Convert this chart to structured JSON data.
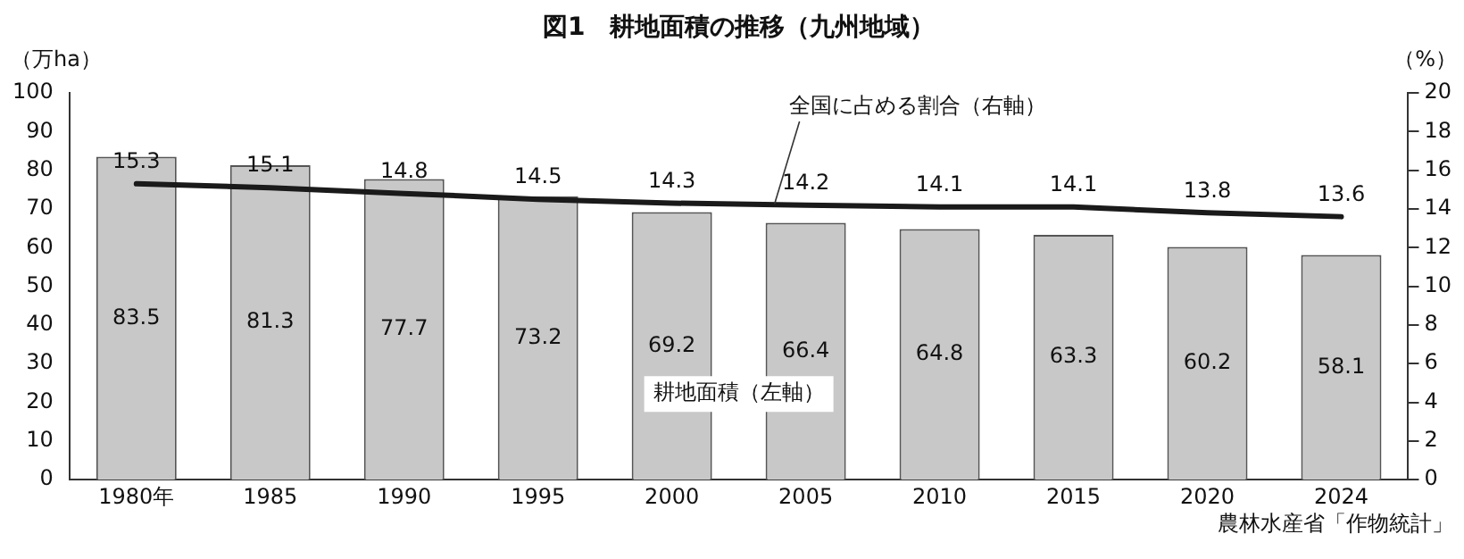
{
  "chart_data": {
    "type": "bar",
    "title": "図1　耕地面積の推移（九州地域）",
    "categories": [
      "1980年",
      "1985",
      "1990",
      "1995",
      "2000",
      "2005",
      "2010",
      "2015",
      "2020",
      "2024"
    ],
    "series": [
      {
        "name": "耕地面積（左軸）",
        "color": "#c8c8c8",
        "values": [
          83.5,
          81.3,
          77.7,
          73.2,
          69.2,
          66.4,
          64.8,
          63.3,
          60.2,
          58.1
        ]
      },
      {
        "name": "全国に占める割合（右軸）",
        "type": "line",
        "axis": "y2",
        "color": "#1a1a1a",
        "values": [
          15.3,
          15.1,
          14.8,
          14.5,
          14.3,
          14.2,
          14.1,
          14.1,
          13.8,
          13.6
        ]
      }
    ],
    "ylabel": "（万ha）",
    "y2label": "（%）",
    "ylim": [
      0,
      100
    ],
    "yticks": [
      0,
      10,
      20,
      30,
      40,
      50,
      60,
      70,
      80,
      90,
      100
    ],
    "y2lim": [
      0,
      20
    ],
    "y2ticks": [
      0,
      2,
      4,
      6,
      8,
      10,
      12,
      14,
      16,
      18,
      20
    ],
    "data_labels": true,
    "grid": false,
    "legend": false,
    "marker": "none",
    "line_style": "solid",
    "annotations": [
      "農林水産省「作物統計」"
    ]
  }
}
